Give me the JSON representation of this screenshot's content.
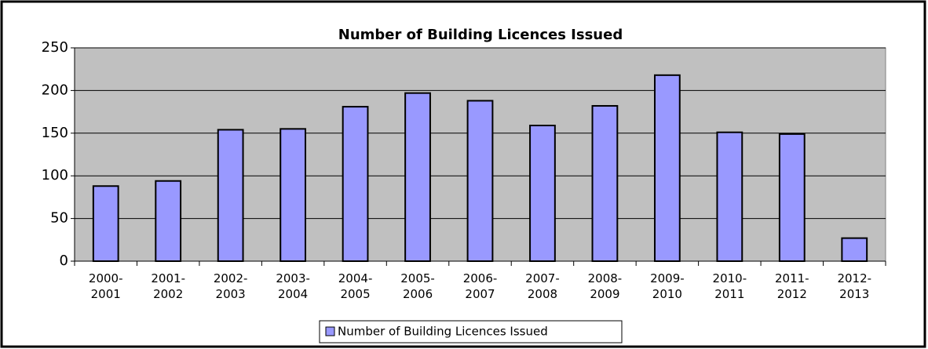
{
  "chart_data": {
    "type": "bar",
    "title": "Number of Building Licences Issued",
    "categories": [
      "2000-2001",
      "2001-2002",
      "2002-2003",
      "2003-2004",
      "2004-2005",
      "2005-2006",
      "2006-2007",
      "2007-2008",
      "2008-2009",
      "2009-2010",
      "2010-2011",
      "2011-2012",
      "2012-2013"
    ],
    "series": [
      {
        "name": "Number of Building Licences Issued",
        "color": "#9999ff",
        "values": [
          88,
          94,
          154,
          155,
          181,
          197,
          188,
          159,
          182,
          218,
          151,
          149,
          27
        ]
      }
    ],
    "ylim": [
      0,
      250
    ],
    "yticks": [
      0,
      50,
      100,
      150,
      200,
      250
    ],
    "grid": true,
    "legend": "bottom"
  }
}
